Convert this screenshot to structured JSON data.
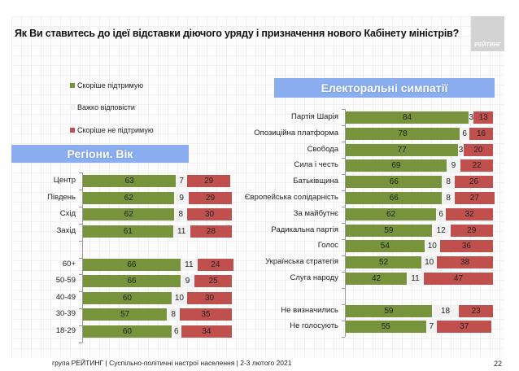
{
  "title": "Як Ви ставитесь до ідеї відставки діючого уряду і призначення нового Кабінету міністрів?",
  "logo": "РЕЙТИНГ",
  "footer": "група РЕЙТИНГ | Суспільно-політичні настрої населення  | 2-3 лютого 2021",
  "page_number": "22",
  "colors": {
    "support": "#77933c",
    "hard": "#f2f2f2",
    "oppose": "#c0504d",
    "header": "#8aaef0"
  },
  "chart_data": [
    {
      "type": "bar",
      "stacked": true,
      "orientation": "horizontal",
      "title": "Регіони. Вік",
      "legend": [
        "Скоріше  підтримую",
        "Важко відповісти",
        "Скоріше  не підтримую"
      ],
      "categories": [
        "Центр",
        "Південь",
        "Схід",
        "Захід",
        "",
        "60+",
        "50-59",
        "40-49",
        "30-39",
        "18-29"
      ],
      "series": [
        {
          "name": "Скоріше  підтримую",
          "values": [
            63,
            62,
            62,
            61,
            null,
            66,
            66,
            60,
            57,
            60
          ]
        },
        {
          "name": "Важко відповісти",
          "values": [
            7,
            9,
            8,
            11,
            null,
            11,
            9,
            10,
            8,
            6
          ]
        },
        {
          "name": "Скоріше  не підтримую",
          "values": [
            29,
            29,
            30,
            28,
            null,
            24,
            25,
            30,
            35,
            34
          ]
        }
      ]
    },
    {
      "type": "bar",
      "stacked": true,
      "orientation": "horizontal",
      "title": "Електоральні симпатії",
      "categories": [
        "Партія Шарія",
        "Опозиційна платформа",
        "Свобода",
        "Сила і честь",
        "Батьківщина",
        "Європейська солідарність",
        "За майбутнє",
        "Радикальна партія",
        "Голос",
        "Українська стратегія",
        "Слуга народу",
        "",
        "Не визначились",
        "Не голосують"
      ],
      "series": [
        {
          "name": "Скоріше  підтримую",
          "values": [
            84,
            78,
            77,
            69,
            66,
            66,
            62,
            59,
            54,
            52,
            42,
            null,
            59,
            55
          ]
        },
        {
          "name": "Важко відповісти",
          "values": [
            3,
            6,
            3,
            9,
            8,
            8,
            6,
            12,
            10,
            10,
            11,
            null,
            18,
            7
          ]
        },
        {
          "name": "Скоріше  не підтримую",
          "values": [
            13,
            16,
            20,
            22,
            26,
            27,
            32,
            29,
            36,
            38,
            47,
            null,
            23,
            37
          ]
        }
      ]
    }
  ]
}
